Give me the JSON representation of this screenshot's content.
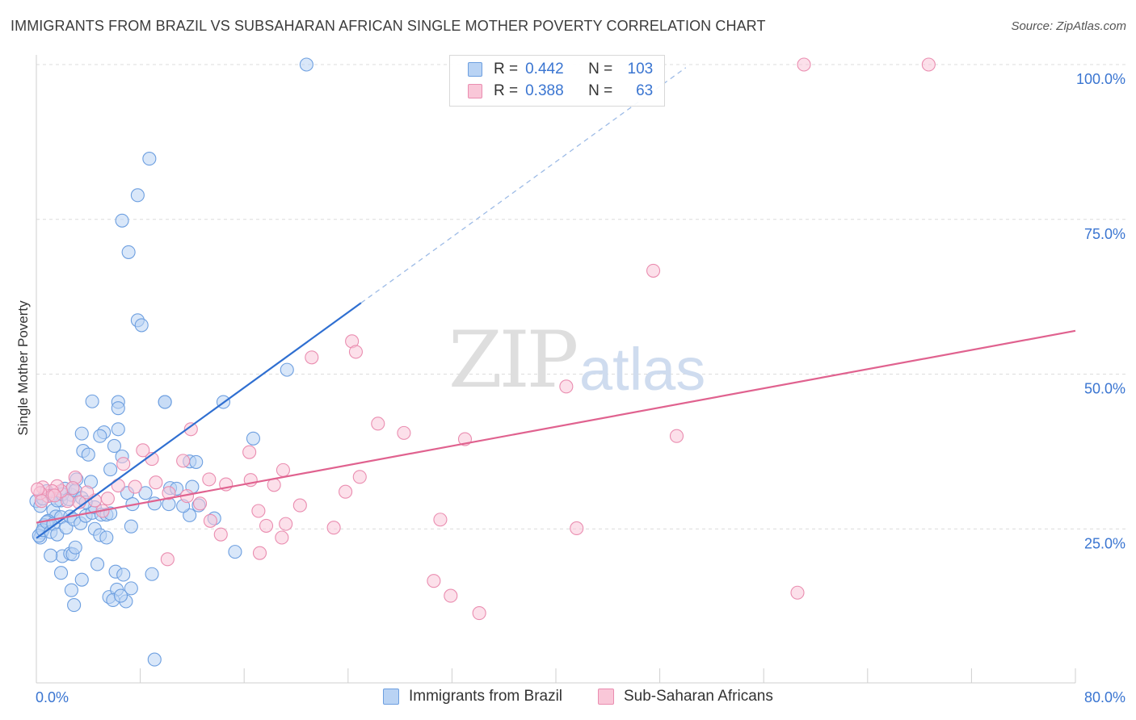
{
  "title": "IMMIGRANTS FROM BRAZIL VS SUBSAHARAN AFRICAN SINGLE MOTHER POVERTY CORRELATION CHART",
  "source": "Source: ZipAtlas.com",
  "watermark": {
    "zip": "ZIP",
    "atlas": "atlas"
  },
  "legend": {
    "rows": [
      {
        "r_label": "R =",
        "r_value": "0.442",
        "n_label": "N =",
        "n_value": "103"
      },
      {
        "r_label": "R =",
        "r_value": "0.388",
        "n_label": "N =",
        "n_value": "63"
      }
    ]
  },
  "bottom_legend": {
    "items": [
      {
        "label": "Immigrants from Brazil"
      },
      {
        "label": "Sub-Saharan Africans"
      }
    ]
  },
  "colors": {
    "blue_fill": "#b9d3f4",
    "blue_stroke": "#6d9fe0",
    "blue_line": "#2f6fd1",
    "pink_fill": "#f9c7d8",
    "pink_stroke": "#ea8db0",
    "pink_line": "#e0628f",
    "axis_label": "#3a75d1",
    "grid": "#dcdcdc"
  },
  "chart_data": {
    "type": "scatter",
    "title": "IMMIGRANTS FROM BRAZIL VS SUBSAHARAN AFRICAN SINGLE MOTHER POVERTY CORRELATION CHART",
    "xlabel": "",
    "ylabel": "Single Mother Poverty",
    "xlim": [
      0,
      80
    ],
    "ylim": [
      0,
      100
    ],
    "x_tick_labels": [
      "0.0%",
      "80.0%"
    ],
    "y_ticks": [
      25,
      50,
      75,
      100
    ],
    "y_tick_labels": [
      "25.0%",
      "50.0%",
      "75.0%",
      "100.0%"
    ],
    "grid": true,
    "legend_position": "top-center",
    "series": [
      {
        "name": "Immigrants from Brazil",
        "color": "#6d9fe0",
        "regression": {
          "x0": 0.0,
          "y0": 23.5,
          "x1": 25.0,
          "y1": 61.5,
          "dashed_to_x": 50.0
        },
        "x": [
          20.8,
          8.7,
          7.8,
          6.6,
          7.1,
          7.8,
          8.1,
          19.3,
          6.3,
          9.9,
          9.9,
          14.4,
          16.7,
          4.3,
          6.3,
          6.3,
          6.0,
          5.2,
          4.9,
          3.5,
          3.6,
          4.0,
          6.6,
          5.7,
          8.4,
          10.3,
          11.8,
          12.3,
          12.0,
          7.0,
          7.4,
          4.2,
          3.1,
          2.7,
          2.2,
          1.9,
          1.3,
          1.5,
          0.9,
          0.6,
          0.4,
          0.3,
          0.2,
          0.5,
          0.8,
          1.1,
          1.3,
          1.6,
          1.9,
          2.3,
          2.6,
          2.9,
          3.4,
          3.8,
          4.3,
          4.5,
          5.0,
          5.4,
          5.7,
          7.3,
          11.8,
          12.5,
          13.7,
          10.2,
          10.8,
          9.1,
          0.0,
          0.3,
          0.5,
          0.8,
          1.2,
          1.6,
          2.0,
          2.5,
          2.8,
          3.0,
          3.5,
          3.8,
          4.5,
          4.9,
          5.4,
          6.1,
          6.7,
          7.3,
          2.0,
          2.6,
          1.1,
          1.9,
          2.8,
          3.0,
          4.7,
          5.6,
          6.2,
          5.9,
          6.9,
          6.5,
          2.9,
          2.7,
          3.5,
          9.1,
          11.3,
          15.3,
          8.9
        ],
        "y": [
          100.0,
          84.8,
          78.9,
          74.8,
          69.7,
          58.7,
          57.9,
          50.7,
          45.5,
          45.5,
          45.5,
          45.5,
          39.6,
          45.6,
          44.5,
          41.1,
          38.4,
          40.6,
          40.0,
          40.4,
          37.6,
          37.0,
          36.7,
          34.6,
          30.8,
          31.6,
          35.9,
          35.8,
          31.8,
          30.8,
          29.0,
          32.6,
          33.0,
          30.5,
          31.5,
          29.6,
          28.0,
          27.0,
          26.3,
          25.6,
          24.4,
          23.6,
          23.9,
          24.8,
          26.1,
          24.5,
          25.8,
          24.1,
          26.9,
          25.2,
          27.0,
          26.5,
          25.9,
          27.1,
          27.6,
          28.5,
          27.3,
          27.3,
          27.5,
          25.4,
          27.2,
          28.8,
          26.7,
          29.0,
          31.5,
          29.1,
          29.5,
          28.7,
          29.9,
          31.1,
          30.4,
          29.6,
          30.6,
          29.8,
          31.6,
          31.2,
          30.0,
          29.3,
          25.0,
          24.0,
          23.6,
          18.1,
          17.6,
          15.4,
          20.6,
          21.0,
          20.7,
          17.9,
          20.9,
          22.0,
          19.3,
          14.0,
          15.2,
          13.5,
          13.3,
          14.2,
          12.7,
          15.1,
          16.8,
          3.9,
          28.7,
          21.3,
          17.7
        ]
      },
      {
        "name": "Sub-Saharan Africans",
        "color": "#ea8db0",
        "regression": {
          "x0": 0.0,
          "y0": 26.0,
          "x1": 80.0,
          "y1": 57.0
        },
        "x": [
          59.1,
          68.7,
          47.5,
          24.3,
          24.6,
          21.2,
          40.8,
          26.3,
          28.3,
          49.3,
          33.0,
          24.9,
          11.9,
          11.3,
          16.4,
          19.0,
          8.2,
          8.9,
          13.3,
          16.5,
          14.6,
          18.3,
          23.8,
          11.6,
          12.6,
          10.2,
          9.2,
          7.6,
          6.7,
          6.3,
          5.5,
          4.5,
          3.9,
          3.0,
          2.8,
          2.4,
          1.9,
          1.6,
          1.2,
          0.9,
          0.5,
          0.3,
          0.1,
          0.4,
          1.4,
          3.3,
          5.1,
          13.4,
          17.1,
          17.7,
          19.2,
          20.3,
          22.9,
          18.9,
          31.1,
          41.6,
          10.1,
          14.2,
          31.9,
          58.6,
          17.2,
          30.6,
          34.1
        ],
        "y": [
          100.0,
          100.0,
          66.7,
          55.3,
          53.6,
          52.7,
          48.0,
          42.0,
          40.5,
          40.0,
          39.5,
          33.4,
          41.1,
          36.0,
          37.4,
          34.5,
          37.7,
          36.3,
          33.0,
          32.9,
          32.2,
          32.1,
          31.0,
          30.3,
          29.1,
          30.8,
          32.5,
          31.8,
          35.5,
          32.0,
          29.9,
          29.6,
          30.9,
          33.3,
          31.6,
          29.5,
          31.1,
          31.9,
          31.1,
          30.3,
          31.7,
          30.8,
          31.4,
          29.5,
          30.4,
          29.3,
          27.9,
          26.3,
          27.9,
          25.5,
          25.8,
          28.8,
          25.2,
          23.6,
          26.5,
          25.1,
          20.1,
          24.1,
          14.2,
          14.7,
          21.1,
          16.6,
          11.4
        ]
      }
    ]
  }
}
